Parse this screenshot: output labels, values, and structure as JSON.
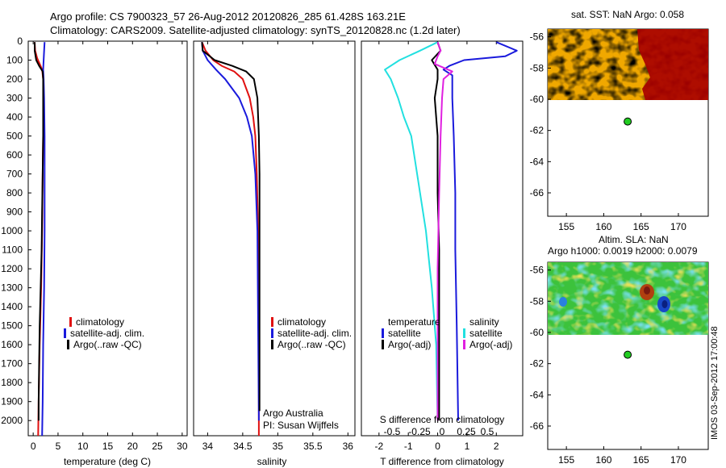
{
  "title_line1": "Argo profile: CS 7900323_57 26-Aug-2012 20120826_285 61.428S 163.21E",
  "title_line2": "Climatology: CARS2009. Satellite-adjusted climatology: synTS_20120828.nc (1.2d later)",
  "footer_vertical": "IMOS 03-Sep-2012 17:00:48",
  "colors": {
    "climatology": "#e01010",
    "satellite": "#1a1adc",
    "argo": "#000000",
    "satellite_salinity": "#22e0e0",
    "argo_salinity_adj": "#e020e0"
  },
  "chart_data": [
    {
      "id": "temperature",
      "type": "line",
      "xlabel": "temperature (deg C)",
      "xlim": [
        -1,
        31
      ],
      "xticks": [
        0,
        5,
        10,
        15,
        20,
        25,
        30
      ],
      "ylim": [
        2080,
        0
      ],
      "yticks": [
        0,
        100,
        200,
        300,
        400,
        500,
        600,
        700,
        800,
        900,
        1000,
        1100,
        1200,
        1300,
        1400,
        1500,
        1600,
        1700,
        1800,
        1900,
        2000
      ],
      "legend": [
        "climatology",
        "satellite-adj. clim.",
        "Argo(..raw -QC)"
      ],
      "series": [
        {
          "name": "climatology",
          "color_key": "climatology",
          "depth": [
            5,
            50,
            90,
            120,
            150,
            200,
            300,
            500,
            700,
            1000,
            1300,
            1600,
            1900,
            2080
          ],
          "values": [
            0.3,
            0.4,
            0.8,
            1.3,
            1.8,
            2.0,
            2.1,
            2.0,
            1.9,
            1.8,
            1.6,
            1.3,
            1.1,
            1.0
          ]
        },
        {
          "name": "satellite-adj. clim.",
          "color_key": "satellite",
          "depth": [
            5,
            50,
            100,
            150,
            200,
            300,
            500,
            700,
            1000,
            1300,
            1600,
            1900,
            2080
          ],
          "values": [
            2.3,
            2.2,
            2.1,
            2.0,
            2.1,
            2.2,
            2.3,
            2.3,
            2.3,
            2.2,
            2.0,
            1.9,
            1.8
          ]
        },
        {
          "name": "Argo(..raw -QC)",
          "color_key": "argo",
          "depth": [
            5,
            50,
            100,
            130,
            160,
            200,
            300,
            500,
            700,
            900,
            1100,
            1300,
            1500,
            1700,
            1900,
            2000
          ],
          "values": [
            0.3,
            0.3,
            0.6,
            1.2,
            1.9,
            2.0,
            2.0,
            2.0,
            1.9,
            1.8,
            1.7,
            1.5,
            1.3,
            1.2,
            1.1,
            1.1
          ]
        }
      ]
    },
    {
      "id": "salinity",
      "type": "line",
      "xlabel": "salinity",
      "xlim": [
        33.8,
        36.1
      ],
      "xticks": [
        34,
        34.5,
        35,
        35.5,
        36
      ],
      "xticklabels": [
        "34",
        "34.5",
        "35",
        "35.5",
        "36"
      ],
      "ylim": [
        2080,
        0
      ],
      "legend": [
        "climatology",
        "satellite-adj. clim.",
        "Argo(..raw -QC)"
      ],
      "annotation": [
        "Argo Australia",
        "PI: Susan Wijffels"
      ],
      "series": [
        {
          "name": "climatology",
          "color_key": "climatology",
          "depth": [
            5,
            50,
            100,
            130,
            160,
            200,
            300,
            400,
            500,
            700,
            1000,
            1500,
            2000,
            2080
          ],
          "values": [
            33.92,
            33.97,
            34.08,
            34.2,
            34.38,
            34.5,
            34.6,
            34.65,
            34.68,
            34.7,
            34.72,
            34.73,
            34.73,
            34.73
          ]
        },
        {
          "name": "satellite-adj. clim.",
          "color_key": "satellite",
          "depth": [
            5,
            50,
            100,
            150,
            200,
            300,
            400,
            500,
            700,
            1000,
            1500,
            2000
          ],
          "values": [
            33.92,
            33.93,
            34.0,
            34.12,
            34.25,
            34.45,
            34.56,
            34.63,
            34.68,
            34.71,
            34.72,
            34.73
          ]
        },
        {
          "name": "Argo(..raw -QC)",
          "color_key": "argo",
          "depth": [
            5,
            50,
            100,
            130,
            160,
            200,
            300,
            500,
            700,
            1000,
            1500,
            1950
          ],
          "values": [
            33.92,
            33.93,
            34.1,
            34.35,
            34.55,
            34.66,
            34.71,
            34.73,
            34.74,
            34.74,
            34.74,
            34.74
          ]
        }
      ]
    },
    {
      "id": "differences",
      "type": "line",
      "xlabel": "T difference from climatology",
      "xlim": [
        -2.6,
        2.9
      ],
      "xticks": [
        -2,
        -1,
        0,
        1,
        2
      ],
      "xlabel_top": "S difference from climatology",
      "xticks_top_labels": [
        "-0.5",
        "-0.25",
        "0",
        "0.25",
        "0.5"
      ],
      "ylim": [
        2080,
        0
      ],
      "legend_left_title": "temperature",
      "legend_left": [
        "satellite",
        "Argo(-adj)"
      ],
      "legend_right_title": "salinity",
      "legend_right": [
        "satellite",
        "Argo(-adj)"
      ],
      "series": [
        {
          "name": "temperature satellite",
          "color_key": "satellite",
          "depth": [
            5,
            50,
            80,
            100,
            130,
            150,
            180,
            200,
            300,
            500,
            800,
            1100,
            1500,
            2000
          ],
          "values": [
            2.0,
            2.7,
            2.3,
            0.9,
            0.4,
            0.2,
            0.5,
            0.5,
            0.5,
            0.55,
            0.6,
            0.6,
            0.65,
            0.7
          ]
        },
        {
          "name": "temperature Argo(-adj)",
          "color_key": "argo",
          "depth": [
            5,
            50,
            100,
            150,
            200,
            300,
            500,
            800,
            1100,
            1500,
            2000
          ],
          "values": [
            0.0,
            0.1,
            -0.2,
            0.0,
            0.0,
            -0.1,
            0.0,
            0.0,
            0.05,
            0.05,
            0.05
          ]
        },
        {
          "name": "salinity satellite",
          "color_key": "satellite_salinity",
          "depth": [
            5,
            50,
            100,
            150,
            200,
            300,
            400,
            500,
            700,
            1000,
            1300,
            1600,
            2000
          ],
          "values": [
            0.0,
            -0.6,
            -1.3,
            -1.8,
            -1.6,
            -1.35,
            -1.15,
            -0.9,
            -0.7,
            -0.4,
            -0.2,
            -0.05,
            0.0
          ]
        },
        {
          "name": "salinity Argo(-adj)",
          "color_key": "argo_salinity_adj",
          "depth": [
            5,
            50,
            80,
            120,
            160,
            200,
            300,
            500,
            800,
            1200,
            1600,
            2000
          ],
          "values": [
            0.0,
            0.1,
            0.0,
            -0.1,
            0.5,
            0.2,
            0.15,
            0.1,
            0.05,
            0.0,
            0.0,
            0.0
          ]
        }
      ]
    },
    {
      "id": "sst_map",
      "type": "heatmap",
      "title": "sat. SST: NaN Argo: 0.058",
      "xlim": [
        152.5,
        174
      ],
      "xticks": [
        155,
        160,
        165,
        170
      ],
      "ylim": [
        -67.5,
        -55.5
      ],
      "yticks": [
        -56,
        -58,
        -60,
        -62,
        -64,
        -66
      ],
      "data_ylim": [
        -60.1,
        -55.5
      ],
      "marker": {
        "lon": 163.21,
        "lat": -61.428
      }
    },
    {
      "id": "sla_map",
      "type": "heatmap",
      "title_line1": "Altim. SLA: NaN",
      "title_line2": "Argo h1000: 0.0019 h2000: 0.0079",
      "xlim": [
        152.5,
        174
      ],
      "xticks": [
        155,
        160,
        165,
        170
      ],
      "ylim": [
        -67.5,
        -55.5
      ],
      "yticks": [
        -56,
        -58,
        -60,
        -62,
        -64,
        -66
      ],
      "data_ylim": [
        -60.1,
        -55.5
      ],
      "marker": {
        "lon": 163.21,
        "lat": -61.428
      }
    }
  ]
}
